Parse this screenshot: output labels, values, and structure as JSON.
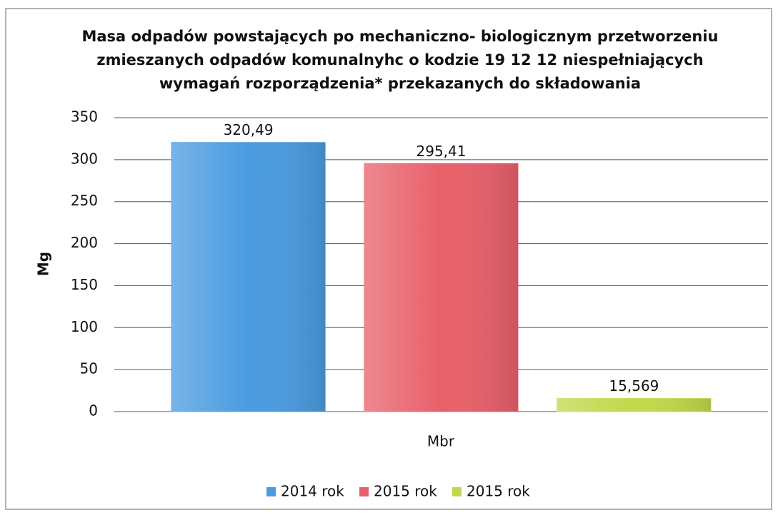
{
  "chart_data": {
    "type": "bar",
    "title": [
      "Masa odpadów powstających po mechaniczno- biologicznym przetworzeniu",
      "zmieszanych odpadów komunalnyhc o kodzie 19 12 12 niespełniających",
      "wymagań rozporządzenia* przekazanych do składowania"
    ],
    "x_label": "Mbr",
    "y_label": "Mg",
    "categories": [
      "Mbr"
    ],
    "series": [
      {
        "name": "2014 rok",
        "color": "#4a9be0",
        "values": [
          320.49
        ],
        "value_labels": [
          "320,49"
        ]
      },
      {
        "name": "2015 rok",
        "color": "#e8606a",
        "values": [
          295.41
        ],
        "value_labels": [
          "295,41"
        ]
      },
      {
        "name": "2015 rok",
        "color": "#c0d84a",
        "values": [
          15.569
        ],
        "value_labels": [
          "15,569"
        ]
      }
    ],
    "ylim": [
      0,
      350
    ],
    "yticks": [
      0,
      50,
      100,
      150,
      200,
      250,
      300,
      350
    ],
    "grid": true,
    "legend": "bottom"
  }
}
